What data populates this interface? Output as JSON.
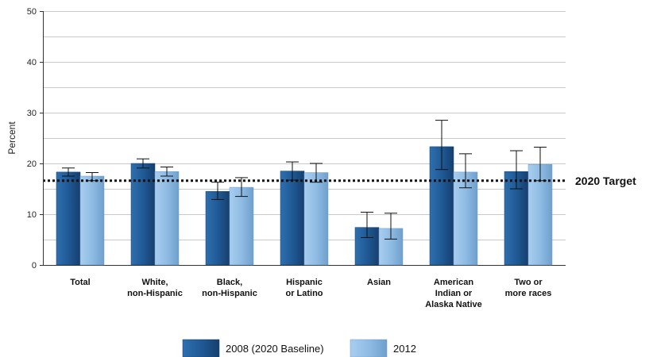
{
  "chart_data": {
    "type": "bar",
    "ylabel": "Percent",
    "ylim": [
      0,
      50
    ],
    "yticks": [
      0,
      10,
      20,
      30,
      40,
      50
    ],
    "grid": "horizontal",
    "categories": [
      [
        "Total"
      ],
      [
        "White,",
        "non-Hispanic"
      ],
      [
        "Black,",
        "non-Hispanic"
      ],
      [
        "Hispanic",
        "or Latino"
      ],
      [
        "Asian"
      ],
      [
        "American",
        "Indian or",
        "Alaska Native"
      ],
      [
        "Two or",
        "more races"
      ]
    ],
    "series": [
      {
        "name": "2008 (2020 Baseline)",
        "color": "#1f5a96",
        "values": [
          18.3,
          20.0,
          14.5,
          18.5,
          7.4,
          23.3,
          18.4
        ],
        "error_low": [
          17.5,
          19.1,
          12.9,
          16.7,
          5.4,
          18.8,
          15.0
        ],
        "error_high": [
          19.1,
          20.9,
          16.3,
          20.3,
          10.4,
          28.5,
          22.5
        ]
      },
      {
        "name": "2012",
        "color": "#8fbce4",
        "values": [
          17.5,
          18.4,
          15.3,
          18.2,
          7.2,
          18.3,
          19.8
        ],
        "error_low": [
          16.6,
          17.5,
          13.5,
          16.3,
          5.1,
          15.2,
          16.6
        ],
        "error_high": [
          18.2,
          19.3,
          17.2,
          20.0,
          10.2,
          21.9,
          23.2
        ]
      }
    ],
    "target": {
      "label": "2020 Target",
      "value": 16.6
    },
    "legend_position": "bottom"
  }
}
